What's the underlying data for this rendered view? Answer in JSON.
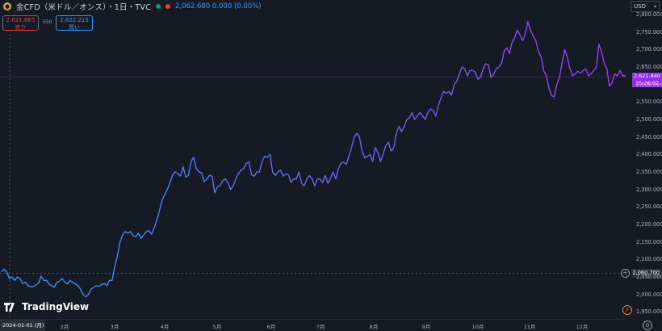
{
  "header": {
    "title": "金CFD（米ドル／オンス）・1日・TVC",
    "quote": "2,062.680 0.000 (0.00%)",
    "icon_symbol": "gold-coin"
  },
  "trade": {
    "sell_price": "2,621.665",
    "sell_label": "売り",
    "spread": "550",
    "buy_price": "2,622.215",
    "buy_label": "買い"
  },
  "currency": "USD",
  "price_axis": {
    "labels": [
      "2,800.000",
      "2,750.000",
      "2,700.000",
      "2,650.000",
      "2,600.000",
      "2,550.000",
      "2,500.000",
      "2,450.000",
      "2,400.000",
      "2,350.000",
      "2,300.000",
      "2,250.000",
      "2,200.000",
      "2,150.000",
      "2,100.000",
      "2,050.000",
      "2,000.000",
      "1,950.000"
    ],
    "last_price": "2,621.840",
    "countdown": "15:26:02",
    "crosshair_price": "2,060.700"
  },
  "time_axis": {
    "crosshair_date": "2024-01-01 (月)",
    "ticks": [
      "2月",
      "3月",
      "4月",
      "5月",
      "6月",
      "7月",
      "8月",
      "9月",
      "10月",
      "11月",
      "12月"
    ]
  },
  "logo_text": "TradingView",
  "chart_data": {
    "type": "line",
    "ylim": [
      1930,
      2830
    ],
    "ticks_y": [
      2800,
      2750,
      2700,
      2650,
      2600,
      2550,
      2500,
      2450,
      2400,
      2350,
      2300,
      2250,
      2200,
      2150,
      2100,
      2050,
      2000,
      1950
    ],
    "crosshair_value": 2060.7,
    "last_value": 2621.84,
    "gradient": [
      "#2e9fff",
      "#a63cff"
    ],
    "series": [
      {
        "values": [
          2065,
          2072,
          2063,
          2045,
          2050,
          2040,
          2050,
          2045,
          2031,
          2035,
          2025,
          2022,
          2022,
          2027,
          2032,
          2052,
          2040,
          2040,
          2030,
          2025,
          2020,
          2035,
          2038,
          2045,
          2035,
          2030,
          2040,
          2035,
          2030,
          2025,
          2015,
          2000,
          1993,
          2000,
          2015,
          2020,
          2025,
          2023,
          2028,
          2032,
          2025,
          2040,
          2040,
          2080,
          2110,
          2150,
          2170,
          2180,
          2175,
          2180,
          2168,
          2165,
          2175,
          2160,
          2170,
          2180,
          2182,
          2172,
          2190,
          2212,
          2240,
          2270,
          2285,
          2300,
          2320,
          2342,
          2350,
          2345,
          2338,
          2365,
          2335,
          2340,
          2380,
          2392,
          2360,
          2350,
          2348,
          2322,
          2330,
          2340,
          2338,
          2290,
          2308,
          2310,
          2325,
          2330,
          2320,
          2300,
          2310,
          2330,
          2345,
          2355,
          2360,
          2375,
          2378,
          2342,
          2338,
          2350,
          2350,
          2380,
          2395,
          2392,
          2400,
          2350,
          2340,
          2350,
          2355,
          2338,
          2345,
          2342,
          2320,
          2330,
          2330,
          2350,
          2318,
          2310,
          2330,
          2340,
          2330,
          2310,
          2330,
          2330,
          2320,
          2340,
          2318,
          2332,
          2350,
          2330,
          2360,
          2375,
          2378,
          2372,
          2395,
          2420,
          2450,
          2460,
          2450,
          2410,
          2390,
          2395,
          2400,
          2380,
          2420,
          2405,
          2380,
          2402,
          2425,
          2435,
          2410,
          2418,
          2460,
          2480,
          2465,
          2480,
          2500,
          2505,
          2520,
          2500,
          2510,
          2520,
          2510,
          2500,
          2520,
          2530,
          2525,
          2510,
          2540,
          2562,
          2580,
          2575,
          2580,
          2570,
          2600,
          2610,
          2630,
          2650,
          2645,
          2625,
          2640,
          2640,
          2635,
          2615,
          2620,
          2645,
          2660,
          2655,
          2620,
          2630,
          2645,
          2650,
          2660,
          2695,
          2705,
          2688,
          2720,
          2735,
          2755,
          2742,
          2725,
          2745,
          2780,
          2755,
          2740,
          2725,
          2695,
          2680,
          2640,
          2625,
          2590,
          2568,
          2565,
          2600,
          2620,
          2662,
          2700,
          2678,
          2645,
          2625,
          2630,
          2638,
          2632,
          2640,
          2645,
          2625,
          2630,
          2640,
          2650,
          2715,
          2695,
          2660,
          2645,
          2595,
          2605,
          2630,
          2625,
          2640,
          2625,
          2625,
          2635,
          2622
        ]
      }
    ]
  }
}
